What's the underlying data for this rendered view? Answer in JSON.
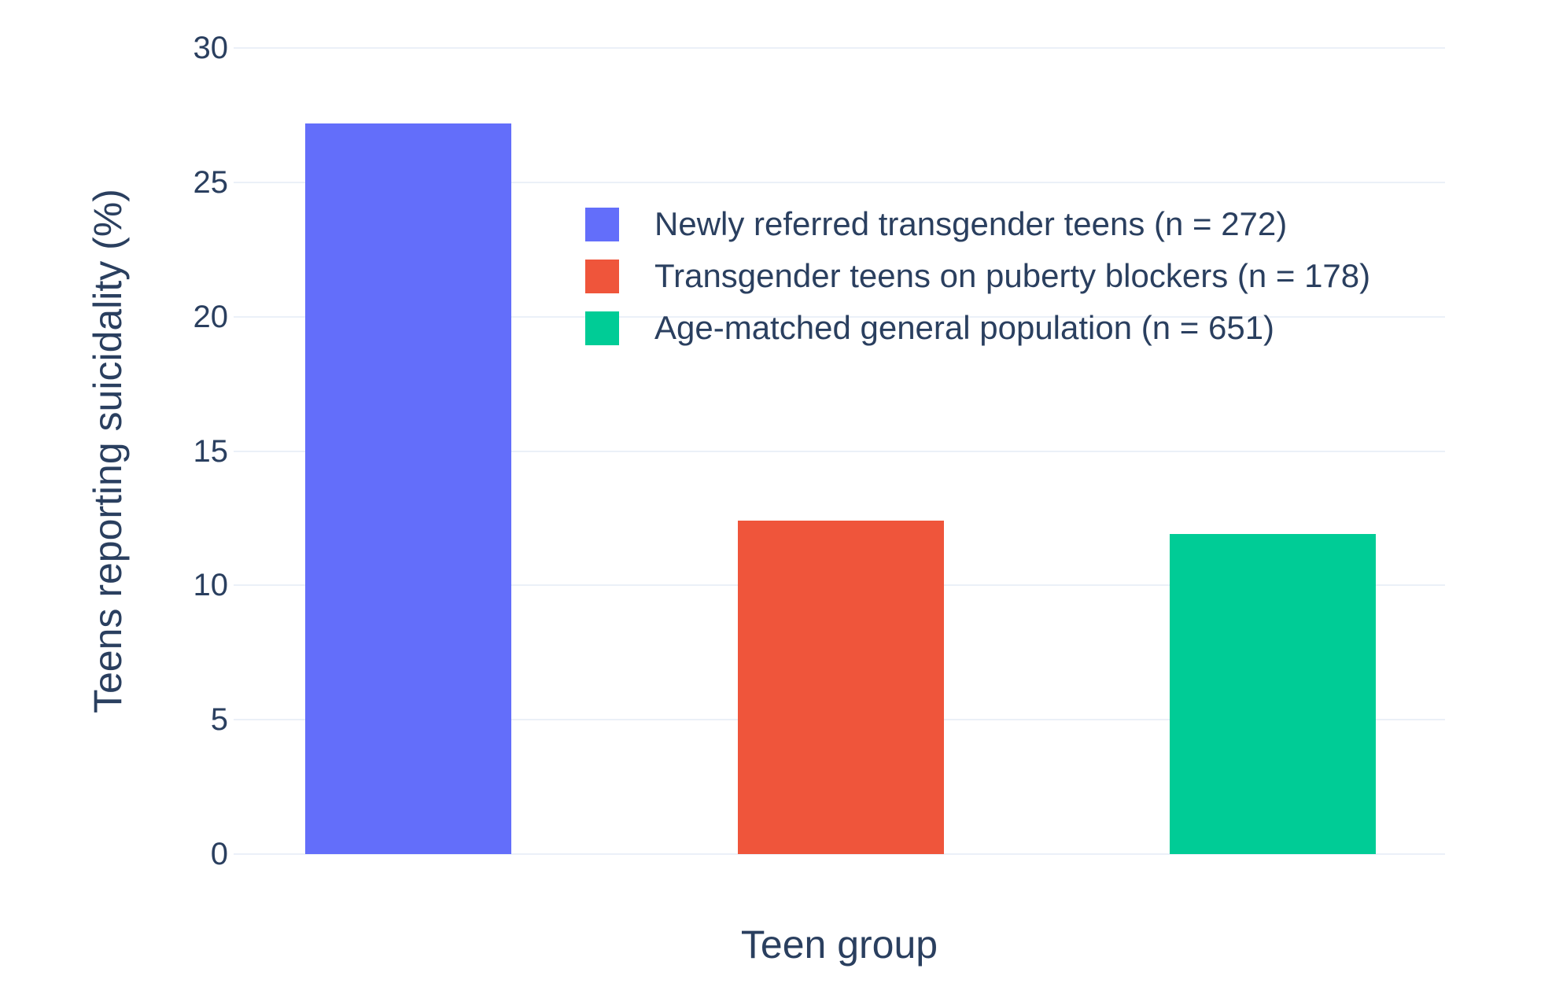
{
  "chart_data": {
    "type": "bar",
    "title": "",
    "xlabel": "Teen group",
    "ylabel": "Teens reporting suicidality (%)",
    "ylim": [
      0,
      30
    ],
    "yticks": [
      0,
      5,
      10,
      15,
      20,
      25,
      30
    ],
    "grid": true,
    "legend_position": "inside-top-right",
    "categories": [
      "Newly referred transgender teens (n = 272)",
      "Transgender teens on puberty blockers (n = 178)",
      "Age-matched general population (n = 651)"
    ],
    "series": [
      {
        "name": "Newly referred transgender teens (n = 272)",
        "value": 27.2,
        "color": "#636EFA"
      },
      {
        "name": "Transgender teens on puberty blockers (n = 178)",
        "value": 12.4,
        "color": "#EF553B"
      },
      {
        "name": "Age-matched general population (n = 651)",
        "value": 11.9,
        "color": "#00CC96"
      }
    ],
    "colors": {
      "grid": "#EBF0F8",
      "text": "#2A3F5F",
      "background": "#FFFFFF"
    }
  }
}
